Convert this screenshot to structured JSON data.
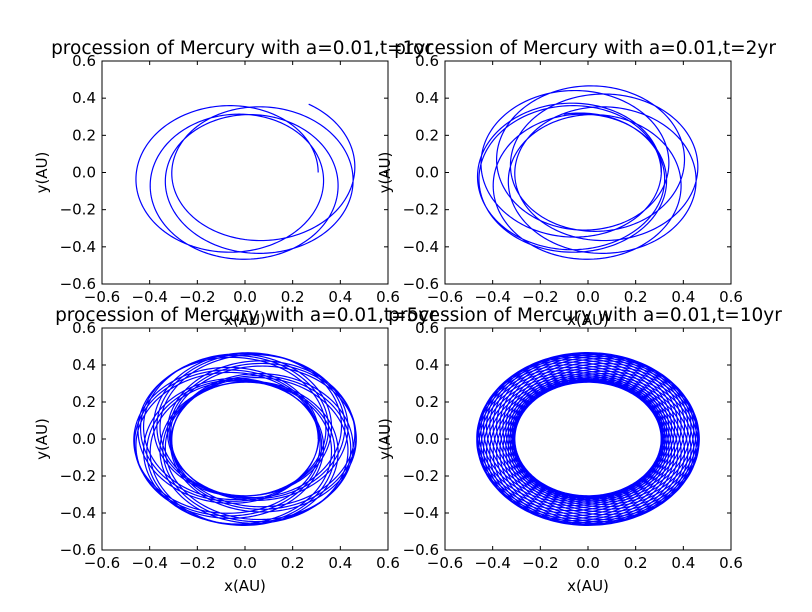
{
  "chart_data": [
    {
      "type": "line",
      "title": "procession of Mercury with a=0.01,t=1yr",
      "xlabel": "x(AU)",
      "ylabel": "y(AU)",
      "xlim": [
        -0.6,
        0.6
      ],
      "ylim": [
        -0.6,
        0.6
      ],
      "xticks": [
        "−0.6",
        "−0.4",
        "−0.2",
        "0.0",
        "0.2",
        "0.4",
        "0.6"
      ],
      "yticks": [
        "−0.6",
        "−0.4",
        "−0.2",
        "0.0",
        "0.2",
        "0.4",
        "0.6"
      ],
      "grid": false,
      "series": [
        {
          "color": "#0000ff",
          "orbit": {
            "perihelion": 0.307,
            "aphelion": 0.467,
            "precession_per_orbit_deg": 50,
            "sun_position": [
              0,
              0
            ]
          },
          "t_years": 1
        }
      ]
    },
    {
      "type": "line",
      "title": "procession of Mercury with a=0.01,t=2yr",
      "xlabel": "x(AU)",
      "ylabel": "y(AU)",
      "xlim": [
        -0.6,
        0.6
      ],
      "ylim": [
        -0.6,
        0.6
      ],
      "xticks": [
        "−0.6",
        "−0.4",
        "−0.2",
        "0.0",
        "0.2",
        "0.4",
        "0.6"
      ],
      "yticks": [
        "−0.6",
        "−0.4",
        "−0.2",
        "0.0",
        "0.2",
        "0.4",
        "0.6"
      ],
      "grid": false,
      "series": [
        {
          "color": "#0000ff",
          "orbit": {
            "perihelion": 0.307,
            "aphelion": 0.467,
            "precession_per_orbit_deg": 50,
            "sun_position": [
              0,
              0
            ]
          },
          "t_years": 2
        }
      ]
    },
    {
      "type": "line",
      "title": "procession of Mercury with a=0.01,t=5yr",
      "xlabel": "x(AU)",
      "ylabel": "y(AU)",
      "xlim": [
        -0.6,
        0.6
      ],
      "ylim": [
        -0.6,
        0.6
      ],
      "xticks": [
        "−0.6",
        "−0.4",
        "−0.2",
        "0.0",
        "0.2",
        "0.4",
        "0.6"
      ],
      "yticks": [
        "−0.6",
        "−0.4",
        "−0.2",
        "0.0",
        "0.2",
        "0.4",
        "0.6"
      ],
      "grid": false,
      "series": [
        {
          "color": "#0000ff",
          "orbit": {
            "perihelion": 0.307,
            "aphelion": 0.467,
            "precession_per_orbit_deg": 50,
            "sun_position": [
              0,
              0
            ]
          },
          "t_years": 5
        }
      ]
    },
    {
      "type": "line",
      "title": "procession of Mercury with a=0.01,t=10yr",
      "xlabel": "x(AU)",
      "ylabel": "y(AU)",
      "xlim": [
        -0.6,
        0.6
      ],
      "ylim": [
        -0.6,
        0.6
      ],
      "xticks": [
        "−0.6",
        "−0.4",
        "−0.2",
        "0.0",
        "0.2",
        "0.4",
        "0.6"
      ],
      "yticks": [
        "−0.6",
        "−0.4",
        "−0.2",
        "0.0",
        "0.2",
        "0.4",
        "0.6"
      ],
      "grid": false,
      "series": [
        {
          "color": "#0000ff",
          "orbit": {
            "perihelion": 0.307,
            "aphelion": 0.467,
            "precession_per_orbit_deg": 50,
            "sun_position": [
              0,
              0
            ]
          },
          "t_years": 10
        }
      ]
    }
  ]
}
